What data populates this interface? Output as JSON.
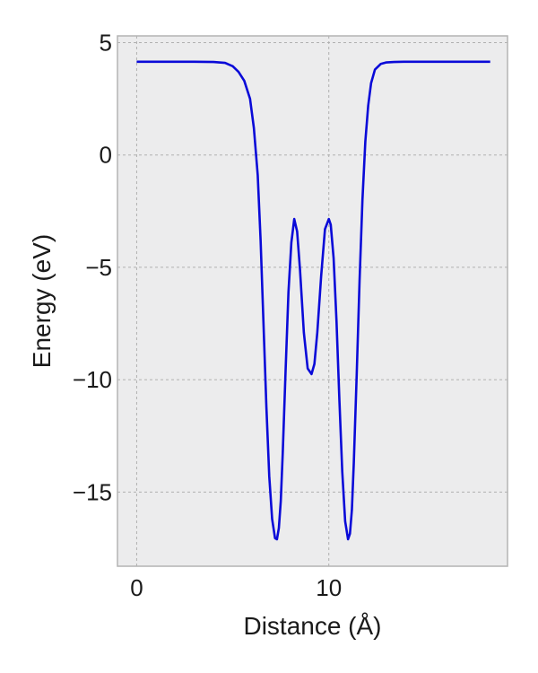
{
  "chart_data": {
    "type": "line",
    "title": "",
    "xlabel": "Distance (Å)",
    "ylabel": "Energy (eV)",
    "xlim": [
      -1.0,
      19.3
    ],
    "ylim": [
      -18.3,
      5.3
    ],
    "xticks": [
      0,
      10
    ],
    "yticks": [
      5,
      0,
      -5,
      -10,
      -15
    ],
    "xtick_labels": [
      "0",
      "10"
    ],
    "ytick_labels": [
      "5",
      "0",
      "−5",
      "−10",
      "−15"
    ],
    "grid": true,
    "background": "#ececed",
    "series": [
      {
        "color": "#0a0ad8",
        "x": [
          0,
          1,
          2,
          3,
          4,
          4.6,
          5.0,
          5.3,
          5.6,
          5.9,
          6.1,
          6.3,
          6.45,
          6.6,
          6.75,
          6.9,
          7.05,
          7.2,
          7.3,
          7.4,
          7.5,
          7.6,
          7.75,
          7.9,
          8.05,
          8.2,
          8.35,
          8.5,
          8.7,
          8.9,
          9.1,
          9.25,
          9.4,
          9.6,
          9.8,
          10.0,
          10.1,
          10.25,
          10.4,
          10.55,
          10.7,
          10.85,
          11.0,
          11.1,
          11.2,
          11.3,
          11.45,
          11.6,
          11.75,
          11.9,
          12.05,
          12.2,
          12.4,
          12.7,
          13.0,
          13.4,
          13.9,
          14.5,
          15.5,
          16.5,
          17.5,
          18.4
        ],
        "y": [
          4.15,
          4.15,
          4.15,
          4.15,
          4.14,
          4.1,
          3.95,
          3.7,
          3.3,
          2.5,
          1.2,
          -0.9,
          -3.8,
          -7.5,
          -11.2,
          -14.3,
          -16.2,
          -17.05,
          -17.1,
          -16.6,
          -15.4,
          -13.3,
          -9.6,
          -6.1,
          -3.9,
          -2.85,
          -3.4,
          -5.1,
          -7.9,
          -9.5,
          -9.75,
          -9.3,
          -7.9,
          -5.4,
          -3.3,
          -2.85,
          -3.1,
          -4.6,
          -7.4,
          -10.9,
          -14.1,
          -16.3,
          -17.1,
          -16.85,
          -15.8,
          -13.7,
          -9.8,
          -5.6,
          -2.0,
          0.6,
          2.2,
          3.2,
          3.8,
          4.05,
          4.12,
          4.14,
          4.15,
          4.15,
          4.15,
          4.15,
          4.15,
          4.15
        ]
      }
    ]
  }
}
